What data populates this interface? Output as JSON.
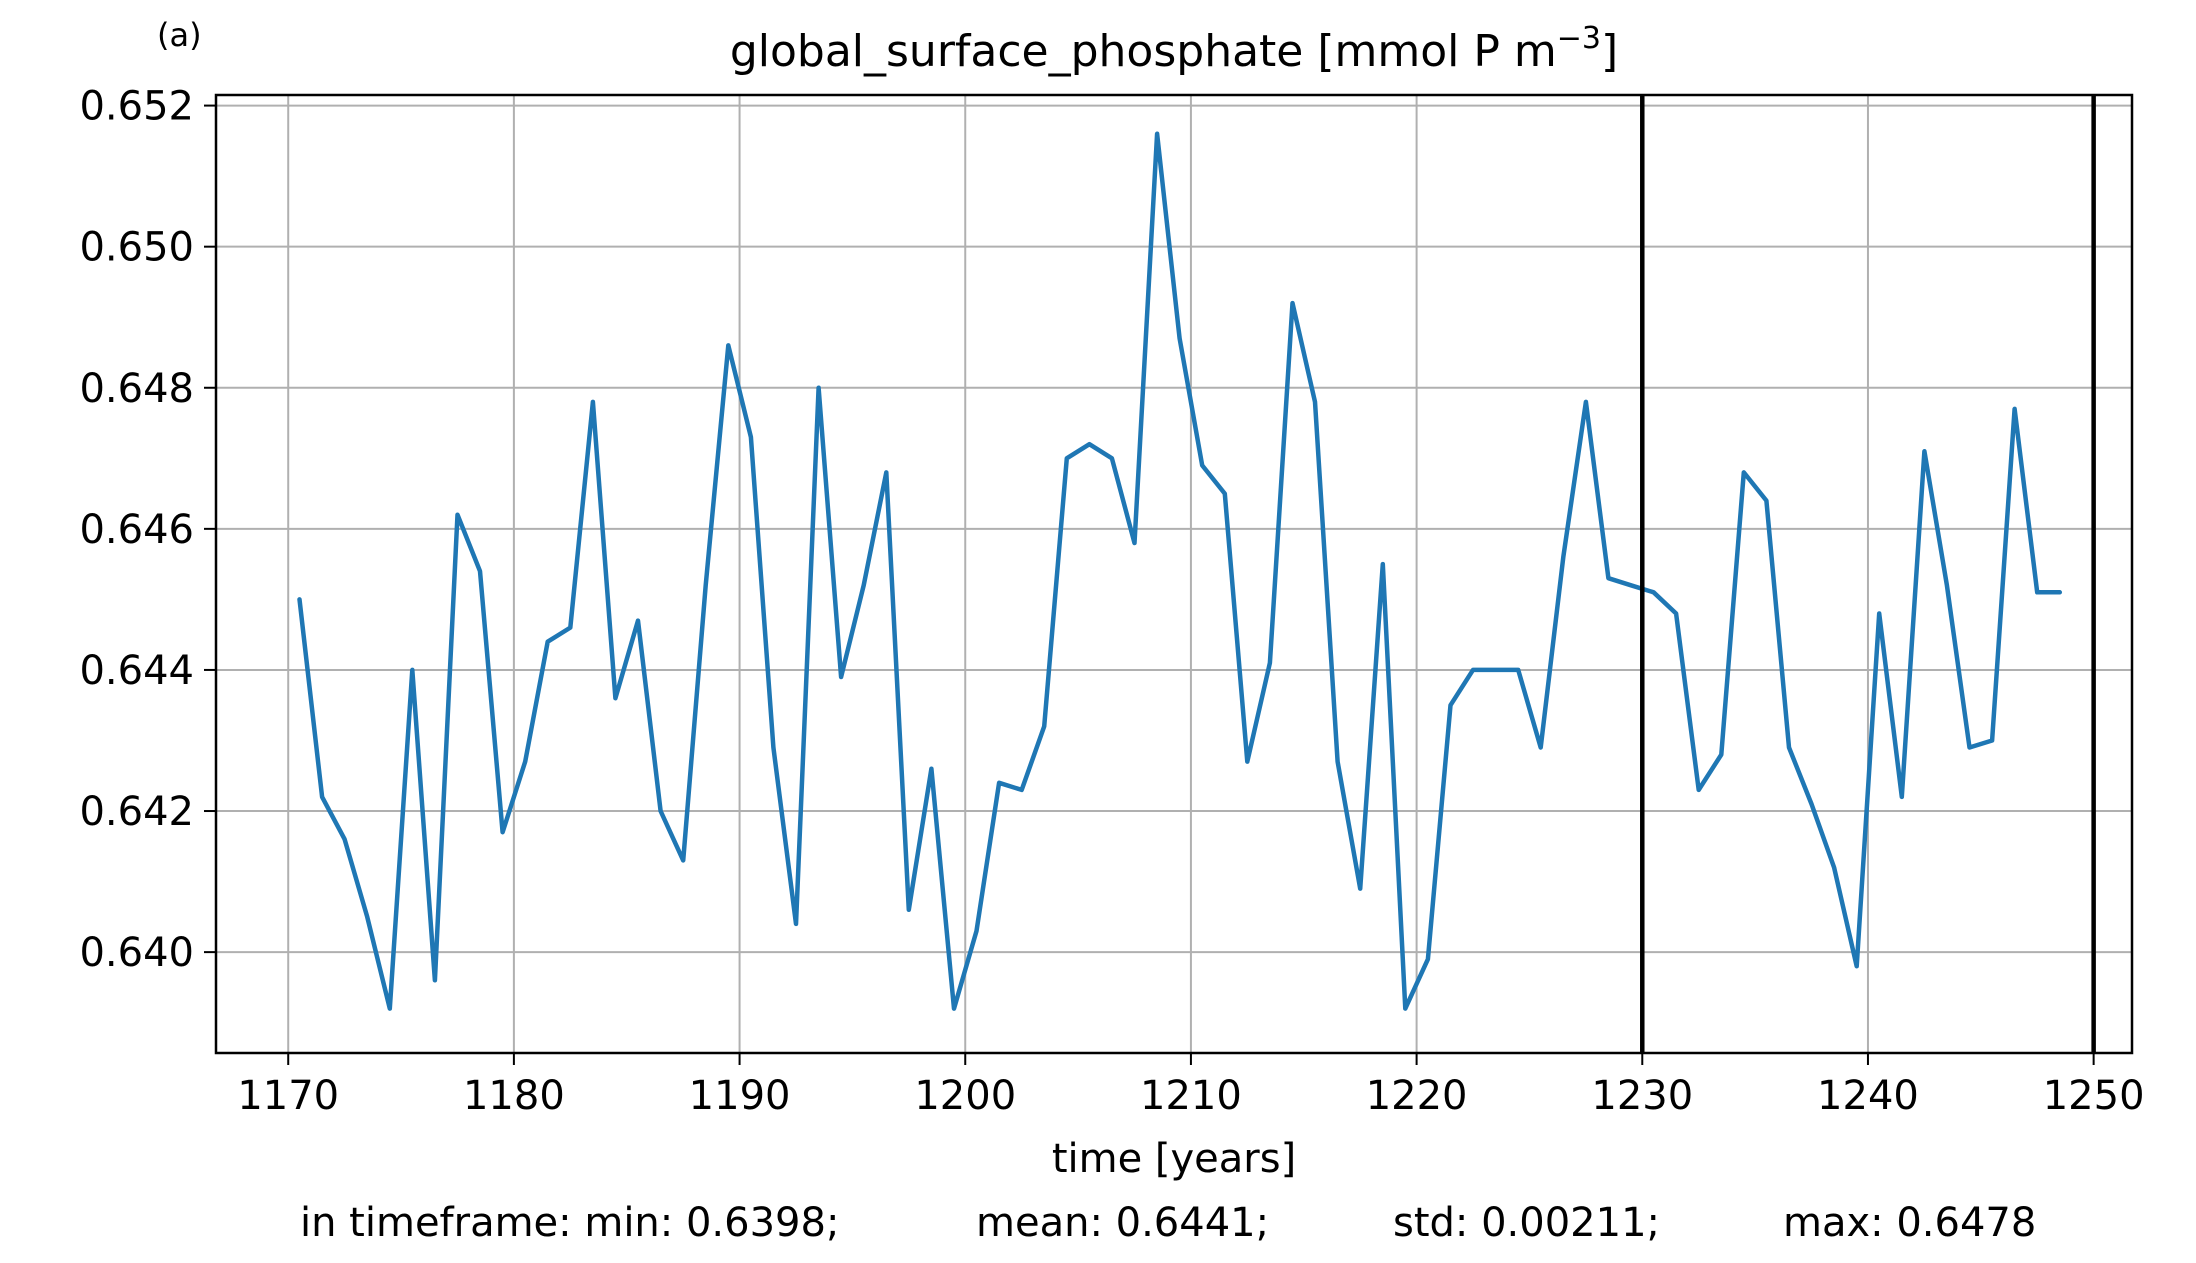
{
  "panel_label": "(a)",
  "chart_data": {
    "type": "line",
    "title_main": "global_surface_phosphate [mmol P m",
    "title_sup": "−3",
    "title_end": "]",
    "xlabel": "time [years]",
    "ylabel": "",
    "xlim": [
      1166.8,
      1251.7
    ],
    "ylim": [
      0.63857,
      0.65215
    ],
    "xticks": [
      1170,
      1180,
      1190,
      1200,
      1210,
      1220,
      1230,
      1240,
      1250
    ],
    "yticks": [
      0.64,
      0.642,
      0.644,
      0.646,
      0.648,
      0.65,
      0.652
    ],
    "grid": true,
    "line_color": "#1f77b4",
    "vline_color": "#000000",
    "vlines": [
      1230,
      1250
    ],
    "x": [
      1170.5,
      1171.5,
      1172.5,
      1173.5,
      1174.5,
      1175.5,
      1176.5,
      1177.5,
      1178.5,
      1179.5,
      1180.5,
      1181.5,
      1182.5,
      1183.5,
      1184.5,
      1185.5,
      1186.5,
      1187.5,
      1188.5,
      1189.5,
      1190.5,
      1191.5,
      1192.5,
      1193.5,
      1194.5,
      1195.5,
      1196.5,
      1197.5,
      1198.5,
      1199.5,
      1200.5,
      1201.5,
      1202.5,
      1203.5,
      1204.5,
      1205.5,
      1206.5,
      1207.5,
      1208.5,
      1209.5,
      1210.5,
      1211.5,
      1212.5,
      1213.5,
      1214.5,
      1215.5,
      1216.5,
      1217.5,
      1218.5,
      1219.5,
      1220.5,
      1221.5,
      1222.5,
      1223.5,
      1224.5,
      1225.5,
      1226.5,
      1227.5,
      1228.5,
      1229.5,
      1230.5,
      1231.5,
      1232.5,
      1233.5,
      1234.5,
      1235.5,
      1236.5,
      1237.5,
      1238.5,
      1239.5,
      1240.5,
      1241.5,
      1242.5,
      1243.5,
      1244.5,
      1245.5,
      1246.5,
      1247.5,
      1248.5
    ],
    "y": [
      0.645,
      0.6422,
      0.6416,
      0.6405,
      0.6392,
      0.644,
      0.6396,
      0.6462,
      0.6454,
      0.6417,
      0.6427,
      0.6444,
      0.6446,
      0.6478,
      0.6436,
      0.6447,
      0.642,
      0.6413,
      0.6452,
      0.6486,
      0.6473,
      0.6429,
      0.6404,
      0.648,
      0.6439,
      0.6452,
      0.6468,
      0.6406,
      0.6426,
      0.6392,
      0.6403,
      0.6424,
      0.6423,
      0.6432,
      0.647,
      0.6472,
      0.647,
      0.6458,
      0.6516,
      0.6487,
      0.6469,
      0.6465,
      0.6427,
      0.6441,
      0.6492,
      0.6478,
      0.6427,
      0.6409,
      0.6455,
      0.6392,
      0.6399,
      0.6435,
      0.644,
      0.644,
      0.644,
      0.6429,
      0.6456,
      0.6478,
      0.6453,
      0.6452,
      0.6451,
      0.6448,
      0.6423,
      0.6428,
      0.6468,
      0.6464,
      0.6429,
      0.6421,
      0.6412,
      0.6398,
      0.6448,
      0.6422,
      0.6471,
      0.6452,
      0.6429,
      0.643,
      0.6477,
      0.6451,
      0.6451
    ]
  },
  "stats": {
    "min": "in timeframe: min: 0.6398;",
    "mean": "mean: 0.6441;",
    "std": "std: 0.00211;",
    "max": "max: 0.6478"
  }
}
